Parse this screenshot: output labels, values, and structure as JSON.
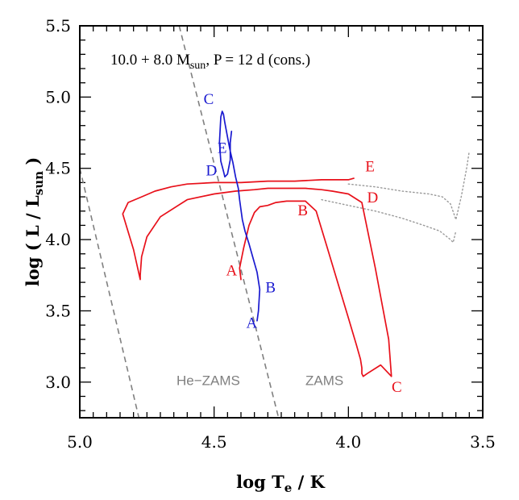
{
  "chart_data": {
    "type": "line",
    "title": {
      "prefix": "10.0 + 8.0 M",
      "sub": "sun",
      "suffix": ", P = 12 d (cons.)"
    },
    "xlabel": {
      "main": "log T",
      "sub": "e",
      "suffix": " / K"
    },
    "ylabel": {
      "main": "log ( L / L",
      "sub": "sun",
      "suffix": " )"
    },
    "xlim": [
      5.0,
      3.5
    ],
    "ylim": [
      2.75,
      5.5
    ],
    "xticks": [
      "5.0",
      "4.5",
      "4.0",
      "3.5"
    ],
    "yticks": [
      "3.0",
      "3.5",
      "4.0",
      "4.5",
      "5.0",
      "5.5"
    ],
    "grid": false,
    "colors": {
      "primary": "#e8101a",
      "secondary": "#1a1ad0",
      "zams": "#808080",
      "dotted": "#999999"
    },
    "reference_lines": [
      {
        "name": "ZAMS",
        "style": "dashed",
        "x": [
          4.63,
          4.26
        ],
        "y": [
          5.5,
          2.75
        ],
        "label_x": 4.16,
        "label_y": 2.98
      },
      {
        "name": "He−ZAMS",
        "style": "dashed",
        "x": [
          5.0,
          4.78
        ],
        "y": [
          4.5,
          2.75
        ],
        "label_x": 4.64,
        "label_y": 2.98
      }
    ],
    "series": [
      {
        "role": "primary",
        "color": "#e8101a",
        "style": "solid",
        "x": [
          4.4,
          4.405,
          4.39,
          4.37,
          4.35,
          4.33,
          4.3,
          4.27,
          4.23,
          4.16,
          4.12,
          4.08,
          4.04,
          4.0,
          3.97,
          3.955,
          3.95,
          3.95,
          3.945,
          3.93,
          3.88,
          3.84,
          3.85,
          3.9,
          3.95,
          4.0,
          4.06,
          4.1,
          4.13,
          4.16,
          4.2,
          4.25,
          4.3,
          4.35,
          4.42,
          4.5,
          4.6,
          4.7,
          4.75,
          4.77,
          4.775,
          4.775,
          4.8,
          4.84,
          4.82,
          4.77,
          4.72,
          4.66,
          4.6,
          4.5,
          4.4,
          4.3,
          4.2,
          4.1,
          4.0,
          3.98
        ],
        "y": [
          3.72,
          3.8,
          3.94,
          4.1,
          4.19,
          4.23,
          4.24,
          4.26,
          4.27,
          4.27,
          4.2,
          3.95,
          3.7,
          3.45,
          3.26,
          3.16,
          3.1,
          3.06,
          3.04,
          3.06,
          3.12,
          3.04,
          3.3,
          3.8,
          4.26,
          4.32,
          4.34,
          4.35,
          4.355,
          4.36,
          4.36,
          4.36,
          4.36,
          4.35,
          4.34,
          4.32,
          4.28,
          4.16,
          4.02,
          3.88,
          3.75,
          3.72,
          3.93,
          4.18,
          4.26,
          4.3,
          4.34,
          4.37,
          4.39,
          4.4,
          4.4,
          4.41,
          4.41,
          4.42,
          4.42,
          4.43
        ]
      },
      {
        "role": "secondary",
        "color": "#1a1ad0",
        "style": "solid",
        "x": [
          4.34,
          4.335,
          4.33,
          4.34,
          4.355,
          4.37,
          4.385,
          4.395,
          4.4,
          4.405,
          4.41,
          4.42,
          4.43,
          4.44,
          4.45,
          4.46,
          4.465,
          4.47,
          4.475,
          4.48,
          4.475,
          4.465,
          4.46,
          4.45,
          4.44,
          4.44,
          4.435
        ],
        "y": [
          3.43,
          3.5,
          3.65,
          3.77,
          3.87,
          3.97,
          4.06,
          4.14,
          4.21,
          4.28,
          4.36,
          4.44,
          4.54,
          4.62,
          4.72,
          4.82,
          4.88,
          4.9,
          4.86,
          4.68,
          4.55,
          4.48,
          4.44,
          4.46,
          4.56,
          4.68,
          4.76
        ]
      },
      {
        "role": "companion-dotted-1",
        "color": "#999999",
        "style": "dotted",
        "x": [
          4.0,
          3.9,
          3.8,
          3.7,
          3.65,
          3.62,
          3.6,
          3.58,
          3.56,
          3.55
        ],
        "y": [
          4.39,
          4.37,
          4.34,
          4.32,
          4.3,
          4.25,
          4.14,
          4.3,
          4.5,
          4.62
        ]
      },
      {
        "role": "companion-dotted-2",
        "color": "#999999",
        "style": "dotted",
        "x": [
          4.1,
          4.0,
          3.9,
          3.8,
          3.72,
          3.66,
          3.62,
          3.61,
          3.6
        ],
        "y": [
          4.28,
          4.24,
          4.2,
          4.15,
          4.1,
          4.06,
          4.0,
          3.98,
          4.06
        ]
      }
    ],
    "annotations": [
      {
        "text": "A",
        "x": 4.435,
        "y": 3.75,
        "color": "#e8101a"
      },
      {
        "text": "B",
        "x": 4.17,
        "y": 4.17,
        "color": "#e8101a"
      },
      {
        "text": "C",
        "x": 3.82,
        "y": 2.93,
        "color": "#e8101a"
      },
      {
        "text": "D",
        "x": 3.91,
        "y": 4.26,
        "color": "#e8101a"
      },
      {
        "text": "E",
        "x": 3.92,
        "y": 4.48,
        "color": "#e8101a"
      },
      {
        "text": "A",
        "x": 4.36,
        "y": 3.38,
        "color": "#1a1ad0"
      },
      {
        "text": "B",
        "x": 4.29,
        "y": 3.63,
        "color": "#1a1ad0"
      },
      {
        "text": "C",
        "x": 4.52,
        "y": 4.95,
        "color": "#1a1ad0"
      },
      {
        "text": "D",
        "x": 4.51,
        "y": 4.45,
        "color": "#1a1ad0"
      },
      {
        "text": "E",
        "x": 4.47,
        "y": 4.61,
        "color": "#1a1ad0"
      }
    ]
  }
}
